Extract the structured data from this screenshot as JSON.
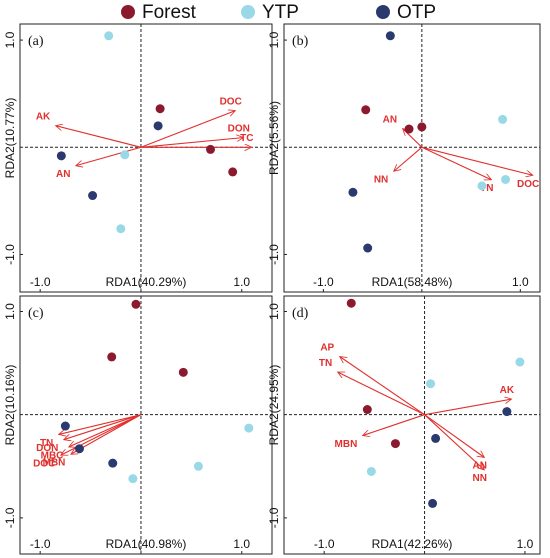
{
  "legend": [
    {
      "name": "Forest",
      "color": "#8b1a2e"
    },
    {
      "name": "YTP",
      "color": "#99d8e6"
    },
    {
      "name": "OTP",
      "color": "#2b3a6e"
    }
  ],
  "chart_data": [
    {
      "type": "scatter",
      "panel": "(a)",
      "xlabel": "RDA1(40.29%)",
      "ylabel": "RDA2(10.77%)",
      "xlim": [
        -1.2,
        1.3
      ],
      "ylim": [
        -1.35,
        1.15
      ],
      "xticks": [
        {
          "value": -1,
          "label": "-1.0"
        },
        {
          "value": 1,
          "label": "1.0"
        }
      ],
      "yticks": [
        {
          "value": -1,
          "label": "-1.0"
        },
        {
          "value": 1,
          "label": "1.0"
        }
      ],
      "series": [
        {
          "x": [
            0.19,
            0.69,
            0.91
          ],
          "values": [
            0.36,
            -0.02,
            -0.23
          ]
        },
        {
          "x": [
            -0.32,
            -0.16,
            -0.2
          ],
          "values": [
            1.04,
            -0.07,
            -0.76
          ]
        },
        {
          "x": [
            0.17,
            -0.79,
            -0.48
          ],
          "values": [
            0.2,
            -0.08,
            -0.45
          ]
        }
      ],
      "arrows": [
        {
          "label": "DOC",
          "x": 0.93,
          "y": 0.34
        },
        {
          "label": "DON",
          "x": 1.01,
          "y": 0.09
        },
        {
          "label": "TC",
          "x": 1.09,
          "y": 0.0
        },
        {
          "label": "AK",
          "x": -0.84,
          "y": 0.2
        },
        {
          "label": "AN",
          "x": -0.64,
          "y": -0.17
        }
      ]
    },
    {
      "type": "scatter",
      "panel": "(b)",
      "xlabel": "RDA1(58.48%)",
      "ylabel": "RDA2(5.56%)",
      "xlim": [
        -1.4,
        1.2
      ],
      "ylim": [
        -1.35,
        1.15
      ],
      "xticks": [
        {
          "value": -1,
          "label": "-1.0"
        },
        {
          "value": 1,
          "label": "1.0"
        }
      ],
      "yticks": [
        {
          "value": -1,
          "label": "-1.0"
        },
        {
          "value": 1,
          "label": "1.0"
        }
      ],
      "series": [
        {
          "x": [
            -0.57,
            -0.13,
            0.0
          ],
          "values": [
            0.35,
            0.17,
            0.19
          ]
        },
        {
          "x": [
            0.82,
            0.61,
            0.85
          ],
          "values": [
            0.26,
            -0.36,
            -0.3
          ]
        },
        {
          "x": [
            -0.32,
            -0.7,
            -0.55
          ],
          "values": [
            1.04,
            -0.42,
            -0.94
          ]
        }
      ],
      "arrows": [
        {
          "label": "AN",
          "x": -0.19,
          "y": 0.17
        },
        {
          "label": "NN",
          "x": -0.28,
          "y": -0.22
        },
        {
          "label": "TN",
          "x": 0.7,
          "y": -0.3
        },
        {
          "label": "DOC",
          "x": 1.12,
          "y": -0.26
        }
      ]
    },
    {
      "type": "scatter",
      "panel": "(c)",
      "xlabel": "RDA1(40.98%)",
      "ylabel": "RDA2(10.16%)",
      "xlim": [
        -1.2,
        1.3
      ],
      "ylim": [
        -1.35,
        1.15
      ],
      "xticks": [
        {
          "value": -1,
          "label": "-1.0"
        },
        {
          "value": 1,
          "label": "1.0"
        }
      ],
      "yticks": [
        {
          "value": -1,
          "label": "-1.0"
        },
        {
          "value": 1,
          "label": "1.0"
        }
      ],
      "series": [
        {
          "x": [
            -0.05,
            -0.29,
            0.42
          ],
          "values": [
            1.07,
            0.56,
            0.41
          ]
        },
        {
          "x": [
            1.07,
            0.57,
            -0.08
          ],
          "values": [
            -0.13,
            -0.5,
            -0.62
          ]
        },
        {
          "x": [
            -0.75,
            -0.61,
            -0.28
          ],
          "values": [
            -0.11,
            -0.33,
            -0.47
          ]
        }
      ],
      "arrows": [
        {
          "label": "TN",
          "x": -0.81,
          "y": -0.19
        },
        {
          "label": "DON",
          "x": -0.76,
          "y": -0.24
        },
        {
          "label": "MBC",
          "x": -0.71,
          "y": -0.31
        },
        {
          "label": "DOC",
          "x": -0.79,
          "y": -0.39
        },
        {
          "label": "MBN",
          "x": -0.69,
          "y": -0.38
        }
      ]
    },
    {
      "type": "scatter",
      "panel": "(d)",
      "xlabel": "RDA1(42.26%)",
      "ylabel": "RDA2(24.95%)",
      "xlim": [
        -1.4,
        1.15
      ],
      "ylim": [
        -1.35,
        1.15
      ],
      "xticks": [
        {
          "value": -1,
          "label": "-1.0"
        },
        {
          "value": 1,
          "label": "1.0"
        }
      ],
      "yticks": [
        {
          "value": -1,
          "label": "-1.0"
        },
        {
          "value": 1,
          "label": "1.0"
        }
      ],
      "series": [
        {
          "x": [
            -0.73,
            -0.57,
            -0.29
          ],
          "values": [
            1.08,
            0.05,
            -0.28
          ]
        },
        {
          "x": [
            0.95,
            0.06,
            -0.53
          ],
          "values": [
            0.51,
            0.3,
            -0.55
          ]
        },
        {
          "x": [
            0.82,
            0.11,
            0.08
          ],
          "values": [
            0.03,
            -0.23,
            -0.86
          ]
        }
      ],
      "arrows": [
        {
          "label": "AP",
          "x": -0.84,
          "y": 0.56
        },
        {
          "label": "TN",
          "x": -0.86,
          "y": 0.41
        },
        {
          "label": "MBN",
          "x": -0.61,
          "y": -0.2
        },
        {
          "label": "AK",
          "x": 0.86,
          "y": 0.15
        },
        {
          "label": "AN",
          "x": 0.59,
          "y": -0.41
        },
        {
          "label": "NN",
          "x": 0.59,
          "y": -0.53
        }
      ]
    }
  ]
}
